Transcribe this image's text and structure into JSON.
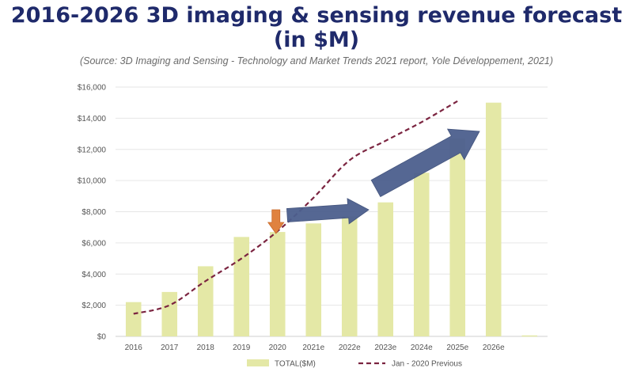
{
  "header": {
    "title_line1": "2016-2026 3D imaging & sensing revenue forecast",
    "title_line2": "(in $M)",
    "source": "(Source: 3D Imaging and Sensing - Technology and Market Trends 2021 report, Yole Développement, 2021)"
  },
  "chart_data": {
    "type": "bar",
    "categories": [
      "2016",
      "2017",
      "2018",
      "2019",
      "2020",
      "2021e",
      "2022e",
      "2023e",
      "2024e",
      "2025e",
      "2026e"
    ],
    "series": [
      {
        "name": "TOTAL($M)",
        "type": "bar",
        "color": "#e4e8a6",
        "values": [
          2200,
          2850,
          4500,
          6380,
          6700,
          7250,
          7700,
          8600,
          10500,
          12700,
          15000
        ]
      },
      {
        "name": "Jan - 2020 Previous",
        "type": "line",
        "style": "dashed",
        "color": "#7b2440",
        "values": [
          1450,
          2000,
          3550,
          5000,
          6750,
          8900,
          11300,
          12550,
          13750,
          15100,
          null
        ]
      }
    ],
    "y_tick_labels": [
      "$0",
      "$2,000",
      "$4,000",
      "$6,000",
      "$8,000",
      "$10,000",
      "$12,000",
      "$14,000",
      "$16,000"
    ],
    "ylim": [
      0,
      16000
    ],
    "grid": true,
    "legend_position": "bottom"
  }
}
